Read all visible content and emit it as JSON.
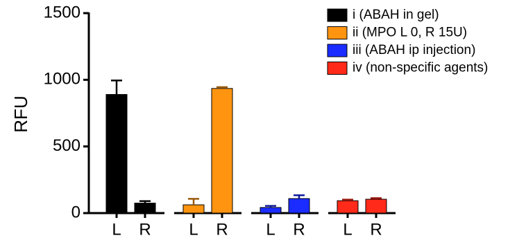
{
  "chart_data": {
    "type": "bar",
    "y_label": "RFU",
    "categories": [
      "L",
      "R",
      "L",
      "R",
      "L",
      "R",
      "L",
      "R"
    ],
    "series": [
      {
        "name": "i (ABAH in gel)",
        "color": "#000000",
        "values": [
          890,
          75,
          null,
          null,
          null,
          null,
          null,
          null
        ],
        "errors": [
          105,
          15,
          null,
          null,
          null,
          null,
          null,
          null
        ]
      },
      {
        "name": "ii (MPO L 0, R 15U)",
        "color": "#ff9410",
        "values": [
          null,
          null,
          62,
          935,
          null,
          null,
          null,
          null
        ],
        "errors": [
          null,
          null,
          45,
          10,
          null,
          null,
          null,
          null
        ]
      },
      {
        "name": "iii (ABAH ip injection)",
        "color": "#1a2cff",
        "values": [
          null,
          null,
          null,
          null,
          42,
          109,
          null,
          null
        ],
        "errors": [
          null,
          null,
          null,
          null,
          12,
          25,
          null,
          null
        ]
      },
      {
        "name": "iv (non-specific agents)",
        "color": "#ff2a1a",
        "values": [
          null,
          null,
          null,
          null,
          null,
          null,
          93,
          104
        ],
        "errors": [
          null,
          null,
          null,
          null,
          null,
          null,
          8,
          8
        ]
      }
    ],
    "ylim": [
      0,
      1500
    ],
    "yticks": [
      0,
      500,
      1000,
      1500
    ]
  }
}
